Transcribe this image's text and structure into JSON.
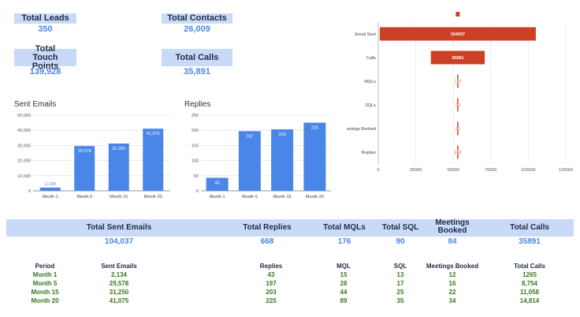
{
  "kpis": {
    "total_leads": {
      "label": "Total Leads",
      "value": "350"
    },
    "total_contacts": {
      "label": "Total Contacts",
      "value": "26,009"
    },
    "total_touch_points": {
      "label": "Total Touch Points",
      "value": "139,928"
    },
    "total_calls": {
      "label": "Total Calls",
      "value": "35,891"
    }
  },
  "chart_data": [
    {
      "type": "bar",
      "title": "Sent Emails",
      "categories": [
        "Month 1",
        "Month 5",
        "Month 15",
        "Month 20"
      ],
      "values": [
        2134,
        29578,
        31250,
        41075
      ],
      "value_labels": [
        "2,134",
        "29,578",
        "31,250",
        "41,075"
      ],
      "ylim": [
        0,
        50000
      ],
      "yticks": [
        0,
        10000,
        20000,
        30000,
        40000,
        50000
      ],
      "ytick_labels": [
        "0",
        "10,000",
        "20,000",
        "30,000",
        "40,000",
        "50,000"
      ],
      "color": "#4a86e8"
    },
    {
      "type": "bar",
      "title": "Replies",
      "categories": [
        "Month 1",
        "Month 5",
        "Month 15",
        "Month 20"
      ],
      "values": [
        43,
        197,
        203,
        225
      ],
      "value_labels": [
        "43",
        "197",
        "203",
        "225"
      ],
      "ylim": [
        0,
        250
      ],
      "yticks": [
        0,
        50,
        100,
        150,
        200,
        250
      ],
      "ytick_labels": [
        "0",
        "50",
        "100",
        "150",
        "200",
        "250"
      ],
      "color": "#4a86e8"
    },
    {
      "type": "bar",
      "title": "",
      "orientation": "horizontal_funnel",
      "center": 53000,
      "categories": [
        "Email Sent",
        "Calls",
        "MQLs",
        "SQLs",
        "eetings Booked",
        "Replies"
      ],
      "values": [
        104037,
        35891,
        176,
        90,
        84,
        668
      ],
      "value_labels": [
        "104037",
        "35891",
        "176",
        "90",
        "84",
        "668"
      ],
      "xlim": [
        0,
        125000
      ],
      "xticks": [
        0,
        25000,
        50000,
        75000,
        100000,
        125000
      ],
      "xtick_labels": [
        "0",
        "25000",
        "50000",
        "75000",
        "100000",
        "125000"
      ],
      "color": "#cc4125"
    }
  ],
  "summary": {
    "columns": [
      {
        "label": "Total Sent Emails",
        "value": "104,037"
      },
      {
        "label": "Total Replies",
        "value": "668"
      },
      {
        "label": "Total MQLs",
        "value": "176"
      },
      {
        "label": "Total SQL",
        "value": "90"
      },
      {
        "label": "Meetings Booked",
        "value": "84"
      },
      {
        "label": "Total Calls",
        "value": "35891"
      }
    ]
  },
  "table": {
    "headers": [
      "Period",
      "Sent Emails",
      "Replies",
      "MQL",
      "SQL",
      "Meetings Booked",
      "Total Calls"
    ],
    "rows": [
      [
        "Month 1",
        "2,134",
        "43",
        "15",
        "13",
        "12",
        "1265"
      ],
      [
        "Month 5",
        "29,578",
        "197",
        "28",
        "17",
        "16",
        "8,754"
      ],
      [
        "Month 15",
        "31,250",
        "203",
        "44",
        "25",
        "22",
        "11,058"
      ],
      [
        "Month 20",
        "41,075",
        "225",
        "89",
        "35",
        "34",
        "14,814"
      ]
    ]
  }
}
